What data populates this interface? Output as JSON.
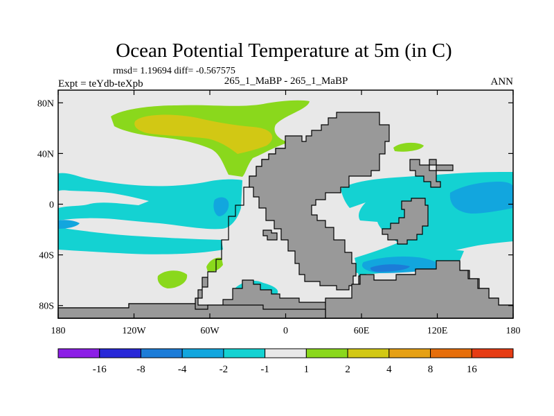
{
  "title": "Ocean Potential Temperature at 5m (in C)",
  "stats_line": "rmsd= 1.19694 diff= -0.567575",
  "experiment_label": "Expt = teYdb-teXpb",
  "case_label": "265_1_MaBP - 265_1_MaBP",
  "season_label": "ANN",
  "map": {
    "projection": "cylindrical-equidistant",
    "lon_range": [
      -180,
      180
    ],
    "lat_range": [
      -90,
      90
    ],
    "lat_ticks": [
      {
        "lat": 80,
        "label": "80N"
      },
      {
        "lat": 40,
        "label": "40N"
      },
      {
        "lat": 0,
        "label": "0"
      },
      {
        "lat": -40,
        "label": "40S"
      },
      {
        "lat": -80,
        "label": "80S"
      }
    ],
    "lon_ticks": [
      {
        "lon": -180,
        "label": "180"
      },
      {
        "lon": -120,
        "label": "120W"
      },
      {
        "lon": -60,
        "label": "60W"
      },
      {
        "lon": 0,
        "label": "0"
      },
      {
        "lon": 60,
        "label": "60E"
      },
      {
        "lon": 120,
        "label": "120E"
      },
      {
        "lon": 180,
        "label": "180"
      }
    ]
  },
  "colorbar": {
    "colors": [
      "#8c1ee6",
      "#2828d8",
      "#1c7cd8",
      "#12a6de",
      "#14d2d2",
      "#e8e8e8",
      "#8ad81c",
      "#d2c814",
      "#e6a014",
      "#e66e0a",
      "#e63c14"
    ],
    "labels": [
      "-16",
      "-8",
      "-4",
      "-2",
      "-1",
      "1",
      "2",
      "4",
      "8",
      "16"
    ]
  },
  "colors": {
    "land": "#999999",
    "background_field": "#e8e8e8",
    "cyan_minus1_to_minus2": "#14d2d2",
    "blue_minus2_to_minus4": "#12a6de",
    "deep_blue_minus4_to_minus8": "#1c7cd8",
    "green_1_to_2": "#8ad81c",
    "yellow_2_to_4": "#d2c814"
  }
}
